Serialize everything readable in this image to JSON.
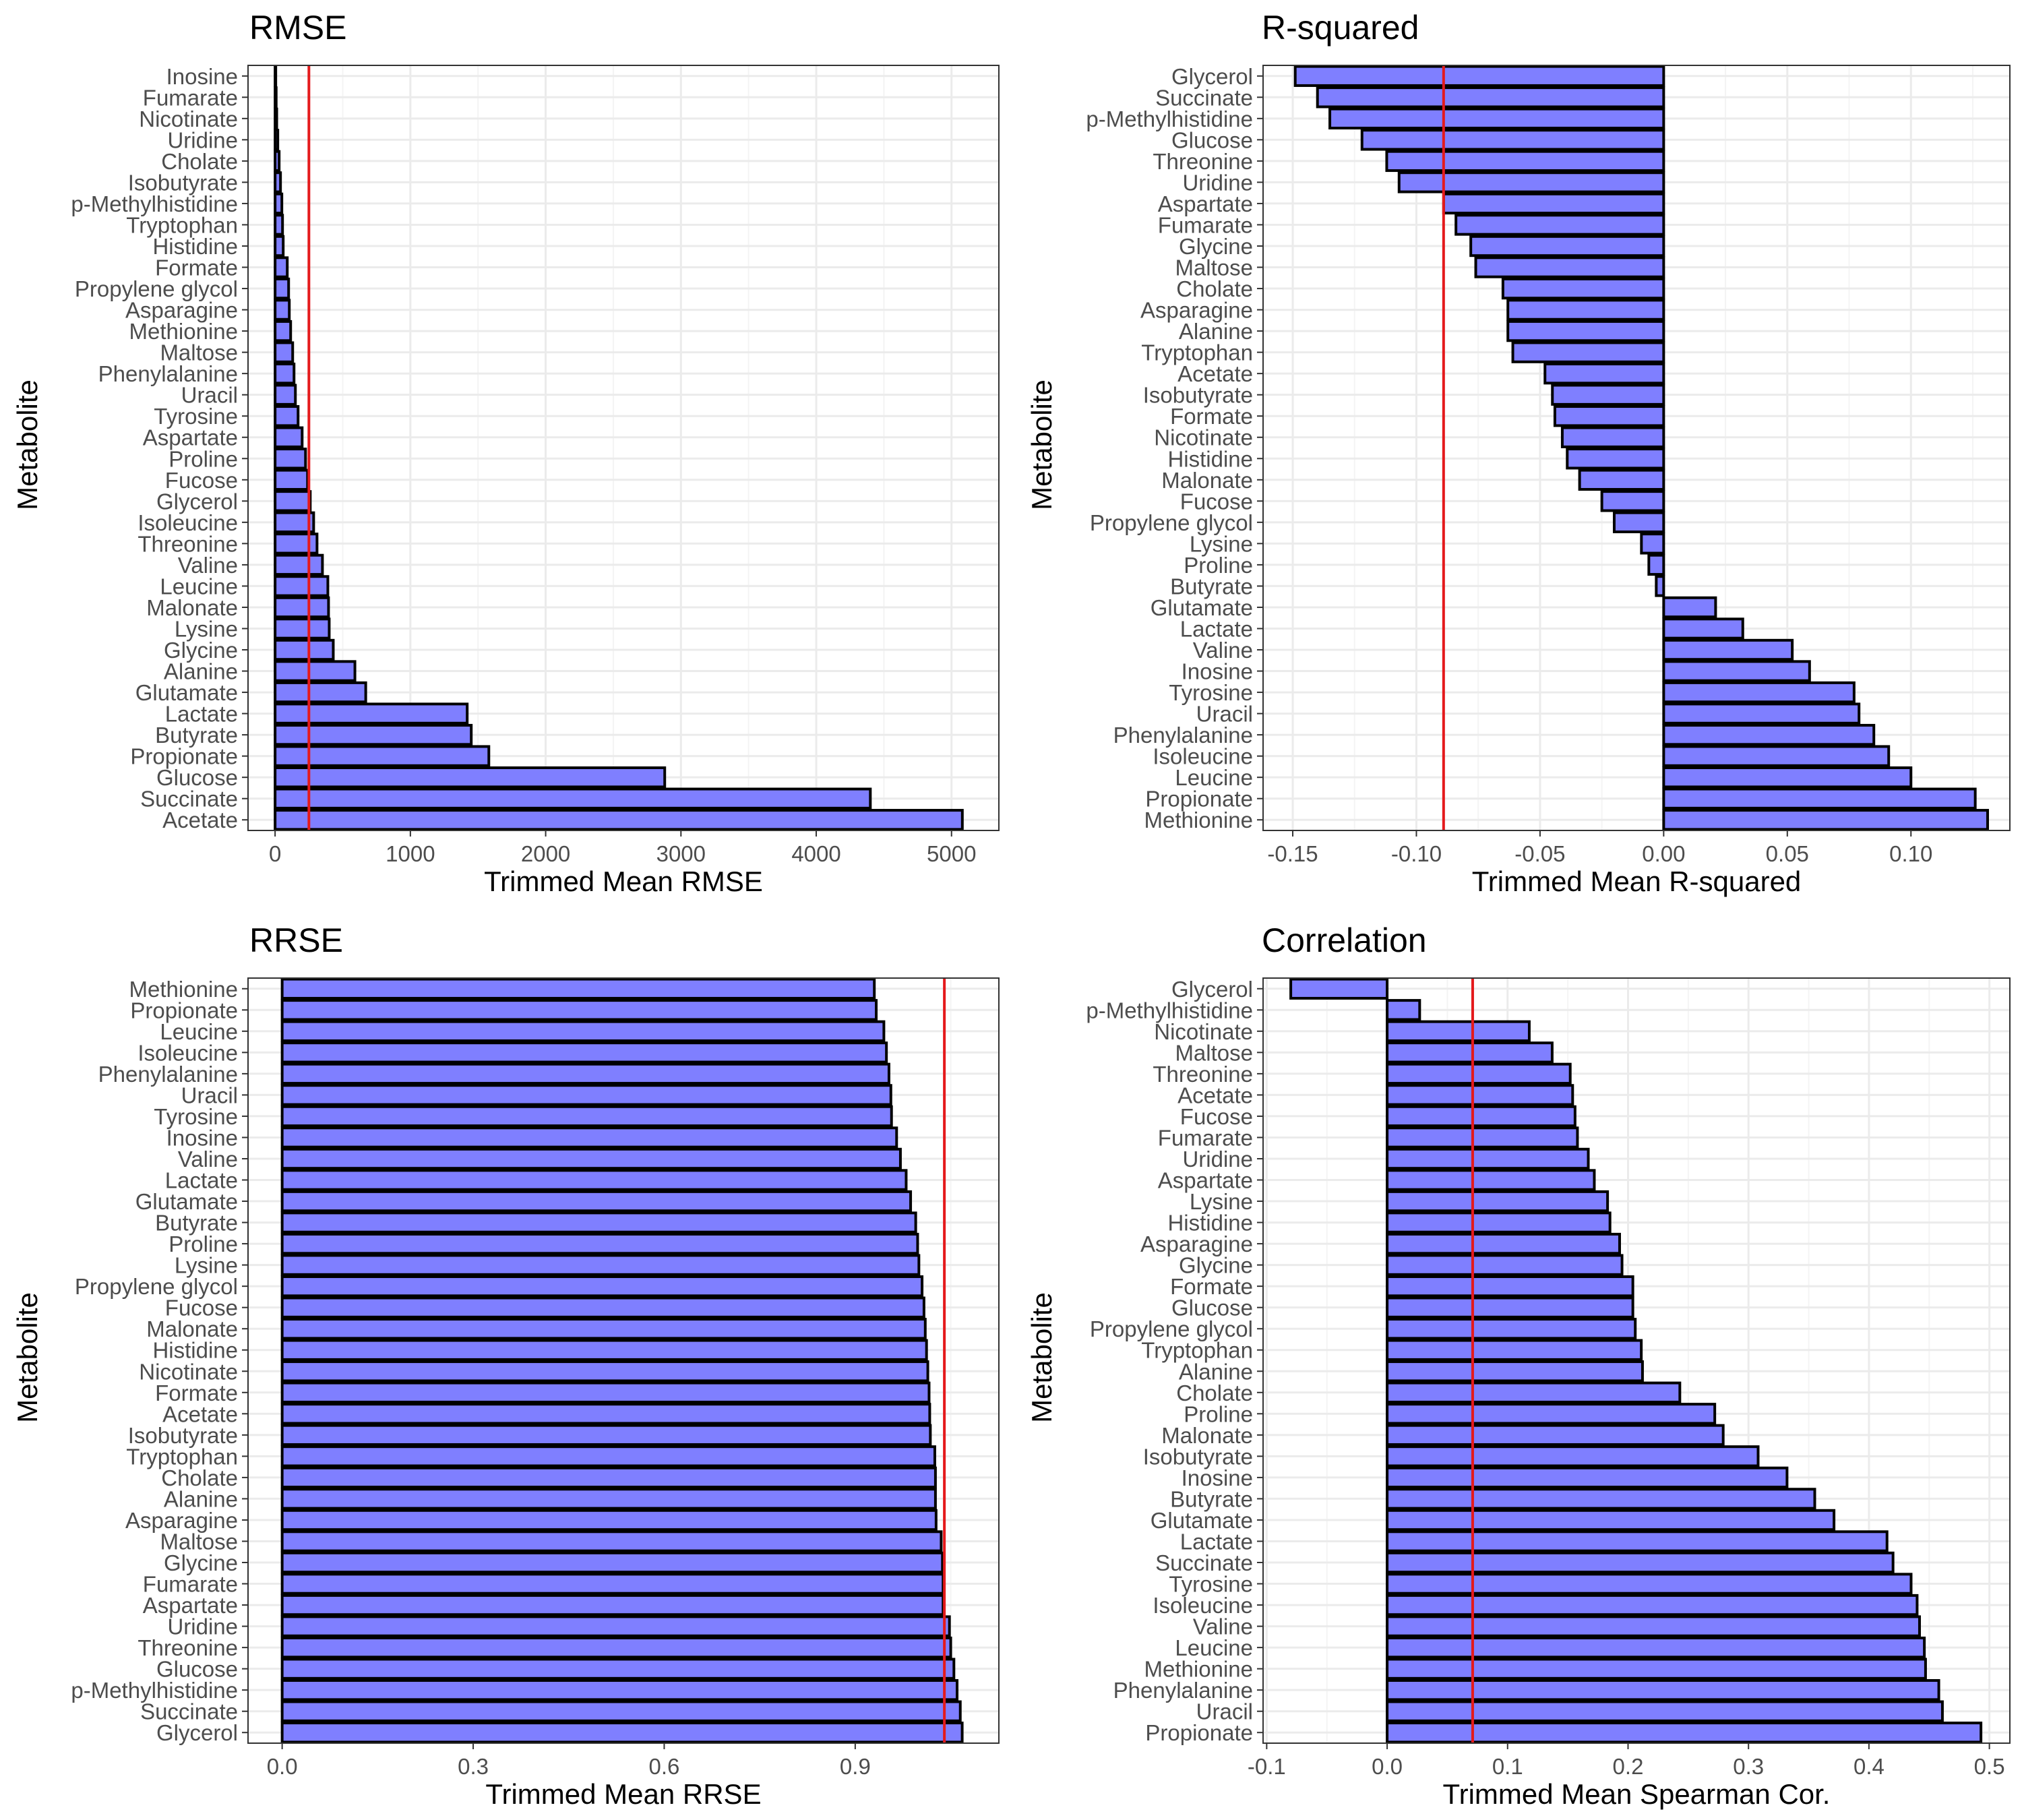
{
  "chart_data": [
    {
      "type": "bar",
      "orientation": "horizontal",
      "title": "RMSE",
      "xlabel": "Trimmed Mean RMSE",
      "ylabel": "Metabolite",
      "xlim": [
        -200,
        5350
      ],
      "xticks": [
        0,
        1000,
        2000,
        3000,
        4000,
        5000
      ],
      "xtick_labels": [
        "0",
        "1000",
        "2000",
        "3000",
        "4000",
        "5000"
      ],
      "reference_line": 250,
      "grid": true,
      "categories": [
        "Inosine",
        "Fumarate",
        "Nicotinate",
        "Uridine",
        "Cholate",
        "Isobutyrate",
        "p-Methylhistidine",
        "Tryptophan",
        "Histidine",
        "Formate",
        "Propylene glycol",
        "Asparagine",
        "Methionine",
        "Maltose",
        "Phenylalanine",
        "Uracil",
        "Tyrosine",
        "Aspartate",
        "Proline",
        "Fucose",
        "Glycerol",
        "Isoleucine",
        "Threonine",
        "Valine",
        "Leucine",
        "Malonate",
        "Lysine",
        "Glycine",
        "Alanine",
        "Glutamate",
        "Lactate",
        "Butyrate",
        "Propionate",
        "Glucose",
        "Succinate",
        "Acetate"
      ],
      "values": [
        5,
        8,
        12,
        20,
        30,
        40,
        50,
        55,
        60,
        90,
        100,
        105,
        115,
        130,
        140,
        150,
        170,
        200,
        225,
        240,
        260,
        285,
        310,
        350,
        390,
        395,
        400,
        430,
        590,
        670,
        1420,
        1450,
        1580,
        2880,
        4400,
        5080
      ]
    },
    {
      "type": "bar",
      "orientation": "horizontal",
      "title": "R-squared",
      "xlabel": "Trimmed Mean R-squared",
      "ylabel": "Metabolite",
      "xlim": [
        -0.162,
        0.14
      ],
      "xticks": [
        -0.15,
        -0.1,
        -0.05,
        0.0,
        0.05,
        0.1
      ],
      "xtick_labels": [
        "-0.15",
        "-0.10",
        "-0.05",
        "0.00",
        "0.05",
        "0.10"
      ],
      "reference_line": -0.089,
      "grid": true,
      "categories": [
        "Glycerol",
        "Succinate",
        "p-Methylhistidine",
        "Glucose",
        "Threonine",
        "Uridine",
        "Aspartate",
        "Fumarate",
        "Glycine",
        "Maltose",
        "Cholate",
        "Asparagine",
        "Alanine",
        "Tryptophan",
        "Acetate",
        "Isobutyrate",
        "Formate",
        "Nicotinate",
        "Histidine",
        "Malonate",
        "Fucose",
        "Propylene glycol",
        "Lysine",
        "Proline",
        "Butyrate",
        "Glutamate",
        "Lactate",
        "Valine",
        "Inosine",
        "Tyrosine",
        "Uracil",
        "Phenylalanine",
        "Isoleucine",
        "Leucine",
        "Propionate",
        "Methionine"
      ],
      "values": [
        -0.149,
        -0.14,
        -0.135,
        -0.122,
        -0.112,
        -0.107,
        -0.089,
        -0.084,
        -0.078,
        -0.076,
        -0.065,
        -0.063,
        -0.063,
        -0.061,
        -0.048,
        -0.045,
        -0.044,
        -0.041,
        -0.039,
        -0.034,
        -0.025,
        -0.02,
        -0.009,
        -0.006,
        -0.003,
        0.021,
        0.032,
        0.052,
        0.059,
        0.077,
        0.079,
        0.085,
        0.091,
        0.1,
        0.126,
        0.131
      ]
    },
    {
      "type": "bar",
      "orientation": "horizontal",
      "title": "RRSE",
      "xlabel": "Trimmed Mean RRSE",
      "ylabel": "Metabolite",
      "xlim": [
        -0.0536,
        1.1256
      ],
      "xticks": [
        0.0,
        0.3,
        0.6,
        0.9
      ],
      "xtick_labels": [
        "0.0",
        "0.3",
        "0.6",
        "0.9"
      ],
      "reference_line": 1.04,
      "grid": true,
      "categories": [
        "Methionine",
        "Propionate",
        "Leucine",
        "Isoleucine",
        "Phenylalanine",
        "Uracil",
        "Tyrosine",
        "Inosine",
        "Valine",
        "Lactate",
        "Glutamate",
        "Butyrate",
        "Proline",
        "Lysine",
        "Propylene glycol",
        "Fucose",
        "Malonate",
        "Histidine",
        "Nicotinate",
        "Formate",
        "Acetate",
        "Isobutyrate",
        "Tryptophan",
        "Cholate",
        "Alanine",
        "Asparagine",
        "Maltose",
        "Glycine",
        "Fumarate",
        "Aspartate",
        "Uridine",
        "Threonine",
        "Glucose",
        "p-Methylhistidine",
        "Succinate",
        "Glycerol"
      ],
      "values": [
        0.93,
        0.933,
        0.945,
        0.949,
        0.953,
        0.956,
        0.957,
        0.965,
        0.971,
        0.98,
        0.987,
        0.995,
        0.998,
        1.0,
        1.005,
        1.008,
        1.01,
        1.012,
        1.014,
        1.016,
        1.017,
        1.018,
        1.025,
        1.026,
        1.026,
        1.027,
        1.035,
        1.037,
        1.038,
        1.038,
        1.048,
        1.05,
        1.055,
        1.06,
        1.065,
        1.068
      ]
    },
    {
      "type": "bar",
      "orientation": "horizontal",
      "title": "Correlation",
      "xlabel": "Trimmed Mean Spearman Cor.",
      "ylabel": "Metabolite",
      "xlim": [
        -0.103,
        0.517
      ],
      "xticks": [
        -0.1,
        0.0,
        0.1,
        0.2,
        0.3,
        0.4,
        0.5
      ],
      "xtick_labels": [
        "-0.1",
        "0.0",
        "0.1",
        "0.2",
        "0.3",
        "0.4",
        "0.5"
      ],
      "reference_line": 0.071,
      "grid": true,
      "categories": [
        "Glycerol",
        "p-Methylhistidine",
        "Nicotinate",
        "Maltose",
        "Threonine",
        "Acetate",
        "Fucose",
        "Fumarate",
        "Uridine",
        "Aspartate",
        "Lysine",
        "Histidine",
        "Asparagine",
        "Glycine",
        "Formate",
        "Glucose",
        "Propylene glycol",
        "Tryptophan",
        "Alanine",
        "Cholate",
        "Proline",
        "Malonate",
        "Isobutyrate",
        "Inosine",
        "Butyrate",
        "Glutamate",
        "Lactate",
        "Succinate",
        "Tyrosine",
        "Isoleucine",
        "Valine",
        "Leucine",
        "Methionine",
        "Phenylalanine",
        "Uracil",
        "Propionate"
      ],
      "values": [
        -0.08,
        0.027,
        0.118,
        0.137,
        0.152,
        0.154,
        0.156,
        0.158,
        0.167,
        0.172,
        0.183,
        0.185,
        0.193,
        0.195,
        0.204,
        0.204,
        0.206,
        0.211,
        0.212,
        0.243,
        0.272,
        0.279,
        0.308,
        0.332,
        0.355,
        0.371,
        0.415,
        0.42,
        0.435,
        0.44,
        0.442,
        0.446,
        0.447,
        0.458,
        0.461,
        0.493
      ]
    }
  ],
  "style": {
    "bar_fill": "#7f7fff",
    "bar_stroke": "#000000",
    "reference_line_color": "#e41a1c",
    "grid_major": "#ebebeb",
    "grid_minor": "#f4f4f4",
    "text_color": "#000000",
    "tick_text_color": "#4d4d4d",
    "panel_border": "#333333"
  }
}
